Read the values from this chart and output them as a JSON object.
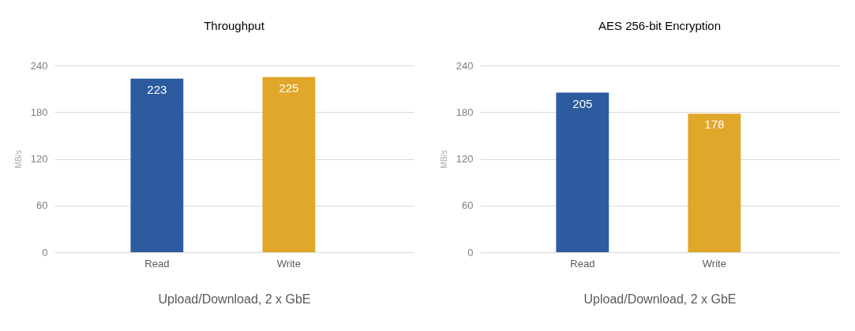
{
  "chart_data": [
    {
      "type": "bar",
      "title": "Throughput",
      "categories": [
        "Read",
        "Write"
      ],
      "values": [
        223,
        225
      ],
      "colors": [
        "#2c5b9f",
        "#e1a72a"
      ],
      "ylabel": "MB/s",
      "xlabel": "Upload/Download, 2 x GbE",
      "ylim": [
        0,
        240
      ],
      "yticks": [
        0,
        60,
        120,
        180,
        240
      ],
      "grid": "y",
      "data_labels": true
    },
    {
      "type": "bar",
      "title": "AES 256-bit Encryption",
      "categories": [
        "Read",
        "Write"
      ],
      "values": [
        205,
        178
      ],
      "colors": [
        "#2c5b9f",
        "#e1a72a"
      ],
      "ylabel": "MB/s",
      "xlabel": "Upload/Download, 2 x GbE",
      "ylim": [
        0,
        240
      ],
      "yticks": [
        0,
        60,
        120,
        180,
        240
      ],
      "grid": "y",
      "data_labels": true
    }
  ]
}
